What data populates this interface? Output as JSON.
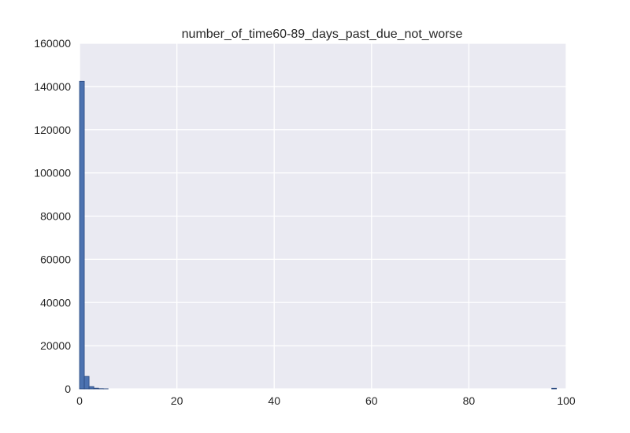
{
  "chart_data": {
    "type": "bar",
    "title": "number_of_time60-89_days_past_due_not_worse",
    "xlabel": "",
    "ylabel": "",
    "xlim": [
      0,
      100
    ],
    "ylim": [
      0,
      160000
    ],
    "x_ticks": [
      "0",
      "20",
      "40",
      "60",
      "80",
      "100"
    ],
    "y_ticks": [
      "0",
      "20000",
      "40000",
      "60000",
      "80000",
      "100000",
      "120000",
      "140000",
      "160000"
    ],
    "grid": true,
    "bins": [
      {
        "x0": 0.0,
        "x1": 0.98,
        "count": 142400
      },
      {
        "x0": 0.98,
        "x1": 1.96,
        "count": 5800
      },
      {
        "x0": 1.96,
        "x1": 2.94,
        "count": 1100
      },
      {
        "x0": 2.94,
        "x1": 3.92,
        "count": 320
      },
      {
        "x0": 3.92,
        "x1": 4.9,
        "count": 100
      },
      {
        "x0": 4.9,
        "x1": 5.88,
        "count": 35
      },
      {
        "x0": 96.04,
        "x1": 97.02,
        "count": 0
      },
      {
        "x0": 97.02,
        "x1": 98.0,
        "count": 270
      }
    ],
    "colors": {
      "bar_fill": "#4c72b0",
      "bar_stroke": "#2b4a80",
      "plot_bg": "#eaeaf2",
      "grid": "#ffffff"
    }
  }
}
